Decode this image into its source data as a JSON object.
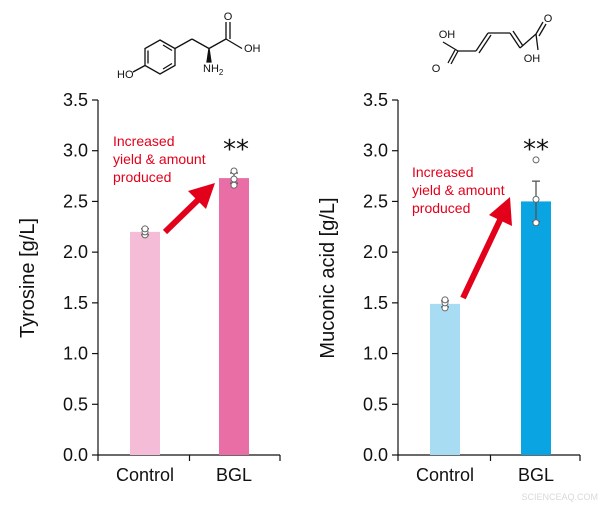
{
  "chart_data": [
    {
      "type": "bar",
      "categories": [
        "Control",
        "BGL"
      ],
      "values": [
        2.2,
        2.73
      ],
      "error": [
        0.03,
        0.05
      ],
      "points": [
        [
          2.17,
          2.2,
          2.23
        ],
        [
          2.66,
          2.72,
          2.8
        ]
      ],
      "colors": [
        "#f4bcd6",
        "#e96ea5"
      ],
      "ylabel": "Tyrosine  [g/L]",
      "ylim": [
        0,
        3.5
      ],
      "yticks": [
        "0.0",
        "0.5",
        "1.0",
        "1.5",
        "2.0",
        "2.5",
        "3.0",
        "3.5"
      ],
      "significance": "**",
      "annotation": [
        "Increased",
        "yield & amount",
        "produced"
      ],
      "molecule": {
        "oh": "OH",
        "nh": "NH",
        "nh_sub": "2",
        "ho": "HO",
        "o": "O"
      }
    },
    {
      "type": "bar",
      "categories": [
        "Control",
        "BGL"
      ],
      "values": [
        1.49,
        2.5
      ],
      "error": [
        0.03,
        0.2
      ],
      "points": [
        [
          1.45,
          1.5,
          1.53
        ],
        [
          2.29,
          2.52,
          2.91
        ]
      ],
      "colors": [
        "#a8dcf3",
        "#0aa4e2"
      ],
      "ylabel": "Muconic acid  [g/L]",
      "ylim": [
        0,
        3.5
      ],
      "yticks": [
        "0.0",
        "0.5",
        "1.0",
        "1.5",
        "2.0",
        "2.5",
        "3.0",
        "3.5"
      ],
      "significance": "**",
      "annotation": [
        "Increased",
        "yield & amount",
        "produced"
      ],
      "molecule": {
        "oh1": "OH",
        "oh2": "OH",
        "o1": "O",
        "o2": "O"
      }
    }
  ],
  "watermark": "SCIENCEAQ.COM"
}
